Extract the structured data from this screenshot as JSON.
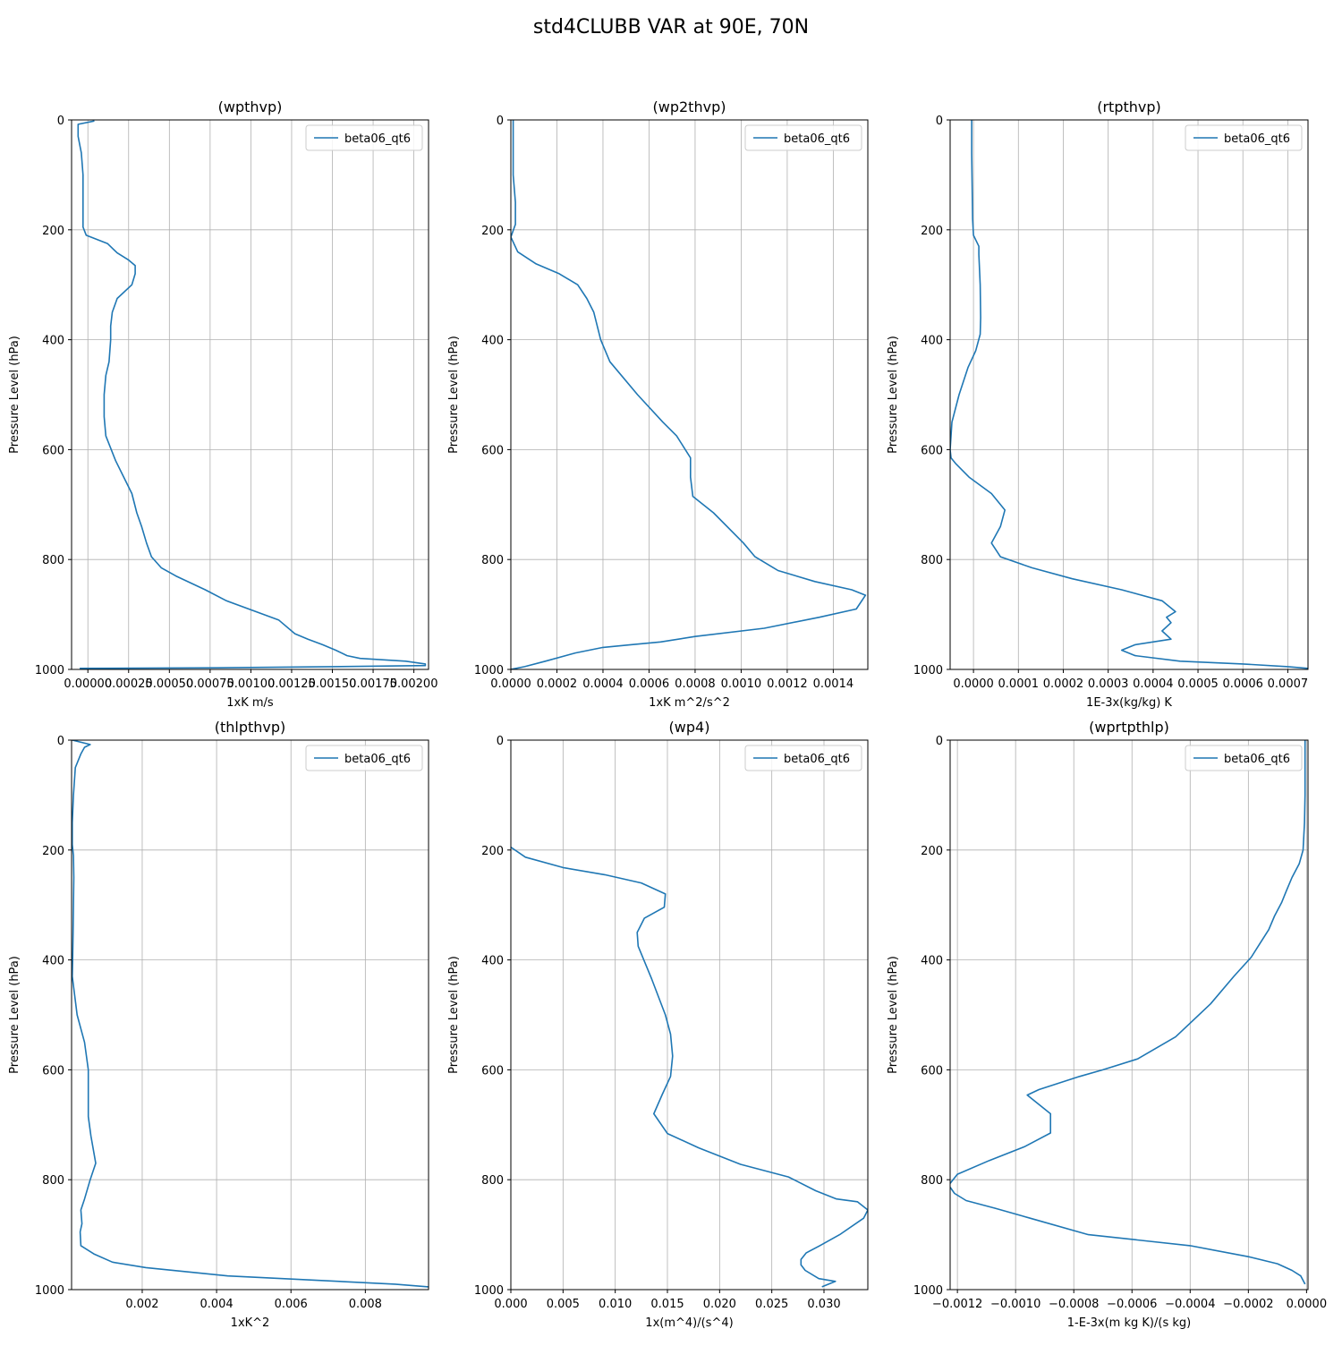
{
  "figure": {
    "title": "std4CLUBB VAR at 90E, 70N"
  },
  "colors": {
    "series": "#1f77b4",
    "grid": "#b0b0b0",
    "frame": "#000000"
  },
  "chart_data": [
    {
      "type": "line",
      "title": "(wpthvp)",
      "xlabel": "1xK m/s",
      "ylabel": "Pressure Level (hPa)",
      "xlim": [
        -0.0001,
        0.00209
      ],
      "ylim": [
        1000,
        0
      ],
      "xticks": [
        0,
        0.00025,
        0.0005,
        0.00075,
        0.001,
        0.00125,
        0.0015,
        0.00175,
        0.002
      ],
      "xticklabels": [
        "0.00000",
        "0.00025",
        "0.00050",
        "0.00075",
        "0.00100",
        "0.00125",
        "0.00150",
        "0.00175",
        "0.00200"
      ],
      "yticks": [
        0,
        200,
        400,
        600,
        800,
        1000
      ],
      "grid": true,
      "legend": "upper right",
      "series": [
        {
          "name": "beta06_qt6",
          "x": [
            4e-05,
            -6e-05,
            -6e-05,
            -4e-05,
            -3e-05,
            -3e-05,
            -3e-05,
            -1e-05,
            0.00012,
            0.00018,
            0.00025,
            0.00029,
            0.00029,
            0.00027,
            0.00018,
            0.00015,
            0.00014,
            0.00014,
            0.00013,
            0.00011,
            0.0001,
            0.0001,
            0.00011,
            0.00017,
            0.00022,
            0.00027,
            0.0003,
            0.00033,
            0.00036,
            0.00039,
            0.00045,
            0.00054,
            0.00072,
            0.00085,
            0.00117,
            0.00127,
            0.00135,
            0.00144,
            0.00152,
            0.00159,
            0.00167,
            0.00195,
            0.00207,
            0.00207,
            0.0015,
            0.0008,
            -5e-05
          ],
          "y": [
            2,
            8,
            30,
            60,
            100,
            150,
            195,
            210,
            225,
            242,
            255,
            265,
            280,
            300,
            325,
            350,
            375,
            400,
            440,
            465,
            500,
            540,
            575,
            620,
            650,
            680,
            715,
            740,
            770,
            795,
            815,
            830,
            855,
            875,
            910,
            935,
            945,
            955,
            965,
            975,
            980,
            985,
            990,
            993,
            995,
            997,
            998
          ]
        }
      ]
    },
    {
      "type": "line",
      "title": "(wp2thvp)",
      "xlabel": "1xK m^2/s^2",
      "ylabel": "Pressure Level (hPa)",
      "xlim": [
        0,
        0.00155
      ],
      "ylim": [
        1000,
        0
      ],
      "xticks": [
        0,
        0.0002,
        0.0004,
        0.0006,
        0.0008,
        0.001,
        0.0012,
        0.0014
      ],
      "xticklabels": [
        "0.0000",
        "0.0002",
        "0.0004",
        "0.0006",
        "0.0008",
        "0.0010",
        "0.0012",
        "0.0014"
      ],
      "yticks": [
        0,
        200,
        400,
        600,
        800,
        1000
      ],
      "grid": true,
      "legend": "upper right",
      "series": [
        {
          "name": "beta06_qt6",
          "x": [
            1e-05,
            1e-05,
            1e-05,
            2e-05,
            2e-05,
            0.0,
            3e-05,
            0.00011,
            0.00021,
            0.00029,
            0.00033,
            0.00036,
            0.00039,
            0.00043,
            0.00055,
            0.00066,
            0.00072,
            0.00078,
            0.00078,
            0.00079,
            0.00088,
            0.00101,
            0.00106,
            0.00116,
            0.00132,
            0.00148,
            0.00154,
            0.0015,
            0.00134,
            0.0011,
            0.0008,
            0.00065,
            0.00052,
            0.0004,
            0.00028,
            0.00015,
            6e-05,
            0.0
          ],
          "y": [
            0,
            60,
            100,
            150,
            190,
            213,
            240,
            262,
            280,
            300,
            325,
            350,
            400,
            440,
            500,
            550,
            575,
            615,
            650,
            685,
            715,
            770,
            795,
            820,
            840,
            855,
            865,
            890,
            905,
            925,
            940,
            950,
            955,
            960,
            970,
            985,
            995,
            1000
          ]
        }
      ]
    },
    {
      "type": "line",
      "title": "(rtpthvp)",
      "xlabel": "1E-3x(kg/kg) K",
      "ylabel": "Pressure Level (hPa)",
      "xlim": [
        -5.2e-05,
        0.000745
      ],
      "ylim": [
        1000,
        0
      ],
      "xticks": [
        0,
        0.0001,
        0.0002,
        0.0003,
        0.0004,
        0.0005,
        0.0006,
        0.0007
      ],
      "xticklabels": [
        "0.0000",
        "0.0001",
        "0.0002",
        "0.0003",
        "0.0004",
        "0.0005",
        "0.0006",
        "0.0007"
      ],
      "yticks": [
        0,
        200,
        400,
        600,
        800,
        1000
      ],
      "grid": true,
      "legend": "upper right",
      "series": [
        {
          "name": "beta06_qt6",
          "x": [
            -4e-06,
            -4e-06,
            -3e-06,
            -2e-06,
            0.0,
            1.2e-05,
            1.2e-05,
            1.5e-05,
            1.6e-05,
            1.5e-05,
            5e-06,
            -1.2e-05,
            -3.2e-05,
            -4.8e-05,
            -5.2e-05,
            -5e-05,
            -4e-05,
            -1e-05,
            4e-05,
            7e-05,
            6e-05,
            4e-05,
            6e-05,
            0.00013,
            0.00022,
            0.00033,
            0.00042,
            0.00045,
            0.00043,
            0.00044,
            0.00042,
            0.00044,
            0.00036,
            0.00033,
            0.00036,
            0.00046,
            0.0006,
            0.0007,
            0.000745
          ],
          "y": [
            0,
            60,
            120,
            180,
            210,
            230,
            245,
            300,
            360,
            390,
            420,
            450,
            500,
            550,
            600,
            615,
            625,
            650,
            680,
            710,
            740,
            770,
            795,
            815,
            835,
            855,
            875,
            895,
            905,
            915,
            930,
            945,
            955,
            965,
            975,
            985,
            990,
            995,
            998
          ]
        }
      ]
    },
    {
      "type": "line",
      "title": "(thlpthvp)",
      "xlabel": "1xK^2",
      "ylabel": "Pressure Level (hPa)",
      "xlim": [
        0.0001,
        0.0097
      ],
      "ylim": [
        1000,
        0
      ],
      "xticks": [
        0.002,
        0.004,
        0.006,
        0.008
      ],
      "xticklabels": [
        "0.002",
        "0.004",
        "0.006",
        "0.008"
      ],
      "yticks": [
        0,
        200,
        400,
        600,
        800,
        1000
      ],
      "grid": true,
      "legend": "upper right",
      "series": [
        {
          "name": "beta06_qt6",
          "x": [
            0.00012,
            0.0006,
            0.00045,
            0.00035,
            0.0002,
            0.00015,
            0.00012,
            0.00012,
            0.00015,
            0.00016,
            0.00015,
            0.00014,
            0.00013,
            0.00012,
            0.00025,
            0.00045,
            0.00055,
            0.00055,
            0.00055,
            0.00062,
            0.00075,
            0.0006,
            0.00045,
            0.00035,
            0.00038,
            0.00033,
            0.00035,
            0.0007,
            0.0012,
            0.0021,
            0.0043,
            0.0088,
            0.0097
          ],
          "y": [
            0,
            8,
            13,
            25,
            50,
            100,
            150,
            190,
            210,
            250,
            300,
            350,
            400,
            430,
            500,
            550,
            600,
            650,
            685,
            720,
            770,
            800,
            835,
            855,
            880,
            895,
            920,
            935,
            950,
            960,
            975,
            990,
            995
          ]
        }
      ]
    },
    {
      "type": "line",
      "title": "(wp4)",
      "xlabel": "1x(m^4)/(s^4)",
      "ylabel": "Pressure Level (hPa)",
      "xlim": [
        0,
        0.0342
      ],
      "ylim": [
        1000,
        0
      ],
      "xticks": [
        0,
        0.005,
        0.01,
        0.015,
        0.02,
        0.025,
        0.03
      ],
      "xticklabels": [
        "0.000",
        "0.005",
        "0.010",
        "0.015",
        "0.020",
        "0.025",
        "0.030"
      ],
      "yticks": [
        0,
        200,
        400,
        600,
        800,
        1000
      ],
      "grid": true,
      "legend": "upper right",
      "series": [
        {
          "name": "beta06_qt6",
          "x": [
            0.0,
            0.0014,
            0.005,
            0.009,
            0.0125,
            0.0148,
            0.0147,
            0.0128,
            0.0121,
            0.0122,
            0.0135,
            0.0148,
            0.0153,
            0.0155,
            0.0153,
            0.0145,
            0.0137,
            0.015,
            0.018,
            0.022,
            0.0266,
            0.0292,
            0.0312,
            0.0332,
            0.0342,
            0.0338,
            0.0315,
            0.0296,
            0.0283,
            0.0278,
            0.0278,
            0.0282,
            0.0295,
            0.0311,
            0.0298
          ],
          "y": [
            195,
            213,
            232,
            245,
            260,
            280,
            304,
            324,
            350,
            375,
            435,
            500,
            535,
            575,
            612,
            645,
            680,
            716,
            742,
            772,
            795,
            820,
            835,
            840,
            855,
            870,
            900,
            920,
            933,
            945,
            955,
            965,
            980,
            985,
            995
          ]
        }
      ]
    },
    {
      "type": "line",
      "title": "(wprtpthlp)",
      "xlabel": "1-E-3x(m kg K)/(s kg)",
      "ylabel": "Pressure Level (hPa)",
      "xlim": [
        -0.001225,
        5e-06
      ],
      "ylim": [
        1000,
        0
      ],
      "xticks": [
        -0.0012,
        -0.001,
        -0.0008,
        -0.0006,
        -0.0004,
        -0.0002,
        0
      ],
      "xticklabels": [
        "−0.0012",
        "−0.0010",
        "−0.0008",
        "−0.0006",
        "−0.0004",
        "−0.0002",
        "0.0000"
      ],
      "yticks": [
        0,
        200,
        400,
        600,
        800,
        1000
      ],
      "grid": true,
      "legend": "upper right",
      "series": [
        {
          "name": "beta06_qt6",
          "x": [
            -5e-06,
            -5e-06,
            -5e-06,
            -7e-06,
            -1.2e-05,
            -2.5e-05,
            -5e-05,
            -7e-05,
            -8.5e-05,
            -0.00011,
            -0.00013,
            -0.00016,
            -0.00019,
            -0.00025,
            -0.00033,
            -0.00045,
            -0.00058,
            -0.0007,
            -0.00078,
            -0.00092,
            -0.00096,
            -0.00088,
            -0.00088,
            -0.00097,
            -0.00109,
            -0.0012,
            -0.00123,
            -0.00121,
            -0.00117,
            -0.00107,
            -0.00095,
            -0.00075,
            -0.0004,
            -0.0002,
            -0.0001,
            -5e-05,
            -2e-05,
            -5e-06
          ],
          "y": [
            0,
            50,
            100,
            150,
            200,
            225,
            250,
            275,
            295,
            320,
            345,
            370,
            395,
            430,
            480,
            540,
            580,
            600,
            612,
            636,
            646,
            680,
            715,
            740,
            765,
            790,
            810,
            825,
            838,
            852,
            870,
            900,
            920,
            940,
            953,
            965,
            975,
            990
          ]
        }
      ]
    }
  ]
}
